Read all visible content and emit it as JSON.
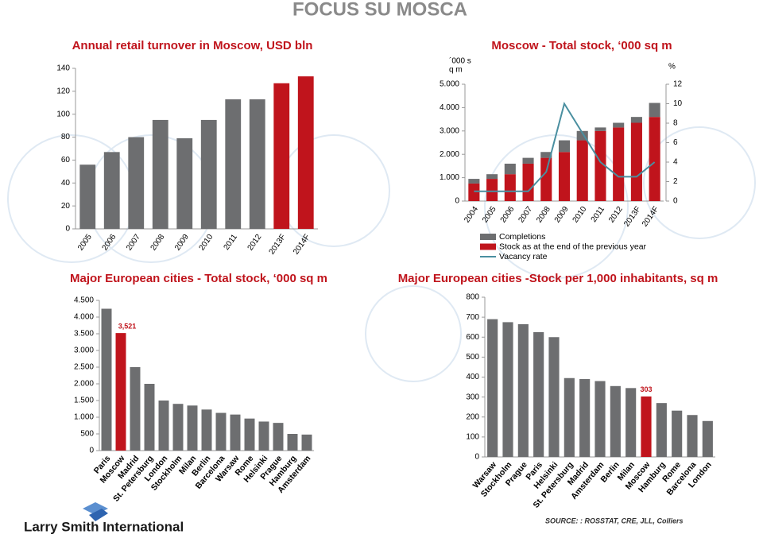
{
  "title": "FOCUS SU MOSCA",
  "logo": "Larry Smith International",
  "source": "SOURCE: : ROSSTAT, CRE, JLL, Colliers",
  "chart_data": [
    {
      "type": "bar",
      "title": "Annual retail turnover in Moscow, USD bln",
      "categories": [
        "2005",
        "2006",
        "2007",
        "2008",
        "2009",
        "2010",
        "2011",
        "2012",
        "2013F",
        "2014F"
      ],
      "values": [
        56,
        67,
        80,
        95,
        79,
        95,
        113,
        113,
        127,
        133
      ],
      "colors": [
        "#6d6e70",
        "#6d6e70",
        "#6d6e70",
        "#6d6e70",
        "#6d6e70",
        "#6d6e70",
        "#6d6e70",
        "#6d6e70",
        "#c0141c",
        "#c0141c"
      ],
      "ylim": [
        0,
        140
      ],
      "yticks": [
        0,
        20,
        40,
        60,
        80,
        100,
        120,
        140
      ]
    },
    {
      "type": "stacked_bar",
      "title": "Moscow - Total stock, ‘000 sq m",
      "ylabel": [
        "´000 s",
        "q m"
      ],
      "y2label": "%",
      "categories": [
        "2004",
        "2005",
        "2006",
        "2007",
        "2008",
        "2009",
        "2010",
        "2011",
        "2012",
        "2013F",
        "2014F"
      ],
      "series": [
        {
          "name": "Stock as at the end of the previous year",
          "color": "#c0141c",
          "values": [
            750,
            950,
            1150,
            1600,
            1850,
            2100,
            2600,
            3000,
            3150,
            3350,
            3600
          ]
        },
        {
          "name": "Completions",
          "color": "#6d6e70",
          "values": [
            200,
            200,
            450,
            250,
            250,
            500,
            400,
            150,
            200,
            250,
            600
          ]
        },
        {
          "name": "Vacancy rate",
          "color": "#4a8fa0",
          "type": "line",
          "axis": "y2",
          "values": [
            1,
            1,
            1,
            1,
            3,
            10,
            7,
            4,
            2.5,
            2.5,
            4
          ]
        }
      ],
      "legend_order": [
        1,
        0,
        2
      ],
      "ylim": [
        0,
        5000
      ],
      "yticks": [
        0,
        {
          "value": 1000,
          "label": "1.000"
        },
        {
          "value": 2000,
          "label": "2.000"
        },
        {
          "value": 3000,
          "label": "3.000"
        },
        {
          "value": 4000,
          "label": "4.000"
        },
        {
          "value": 5000,
          "label": "5.000"
        }
      ],
      "y2lim": [
        0,
        12
      ],
      "y2ticks": [
        0,
        2,
        4,
        6,
        8,
        10,
        12
      ]
    },
    {
      "type": "bar",
      "title": "Major European cities - Total stock, ‘000 sq m",
      "categories": [
        "Paris",
        "Moscow",
        "Madrid",
        "St. Petersburg",
        "London",
        "Stockholm",
        "Milan",
        "Berlin",
        "Barcelona",
        "Warsaw",
        "Rome",
        "Helsinki",
        "Prague",
        "Hamburg",
        "Amsterdam"
      ],
      "values": [
        4250,
        3521,
        2500,
        2000,
        1500,
        1400,
        1350,
        1230,
        1130,
        1080,
        960,
        870,
        830,
        500,
        480
      ],
      "value_labels": [
        null,
        "3,521",
        null,
        null,
        null,
        null,
        null,
        null,
        null,
        null,
        null,
        null,
        null,
        null,
        null
      ],
      "colors": [
        "#6d6e70",
        "#c0141c",
        "#6d6e70",
        "#6d6e70",
        "#6d6e70",
        "#6d6e70",
        "#6d6e70",
        "#6d6e70",
        "#6d6e70",
        "#6d6e70",
        "#6d6e70",
        "#6d6e70",
        "#6d6e70",
        "#6d6e70",
        "#6d6e70"
      ],
      "ylim": [
        0,
        4500
      ],
      "yticks": [
        0,
        500,
        {
          "value": 1000,
          "label": "1.000"
        },
        {
          "value": 1500,
          "label": "1.500"
        },
        {
          "value": 2000,
          "label": "2.000"
        },
        {
          "value": 2500,
          "label": "2.500"
        },
        {
          "value": 3000,
          "label": "3.000"
        },
        {
          "value": 3500,
          "label": "3.500"
        },
        {
          "value": 4000,
          "label": "4.000"
        },
        {
          "value": 4500,
          "label": "4.500"
        }
      ]
    },
    {
      "type": "bar",
      "title": "Major European cities -Stock per 1,000 inhabitants, sq m",
      "categories": [
        "Warsaw",
        "Stockholm",
        "Prague",
        "Paris",
        "Helsinki",
        "St. Petersburg",
        "Madrid",
        "Amsterdam",
        "Berlin",
        "Milan",
        "Moscow",
        "Hamburg",
        "Rome",
        "Barcelona",
        "London"
      ],
      "values": [
        690,
        675,
        665,
        625,
        600,
        395,
        390,
        380,
        355,
        345,
        303,
        270,
        232,
        210,
        180
      ],
      "value_labels": [
        null,
        null,
        null,
        null,
        null,
        null,
        null,
        null,
        null,
        null,
        "303",
        null,
        null,
        null,
        null
      ],
      "colors": [
        "#6d6e70",
        "#6d6e70",
        "#6d6e70",
        "#6d6e70",
        "#6d6e70",
        "#6d6e70",
        "#6d6e70",
        "#6d6e70",
        "#6d6e70",
        "#6d6e70",
        "#c0141c",
        "#6d6e70",
        "#6d6e70",
        "#6d6e70",
        "#6d6e70"
      ],
      "ylim": [
        0,
        800
      ],
      "yticks": [
        0,
        100,
        200,
        300,
        400,
        500,
        600,
        700,
        800
      ]
    }
  ]
}
